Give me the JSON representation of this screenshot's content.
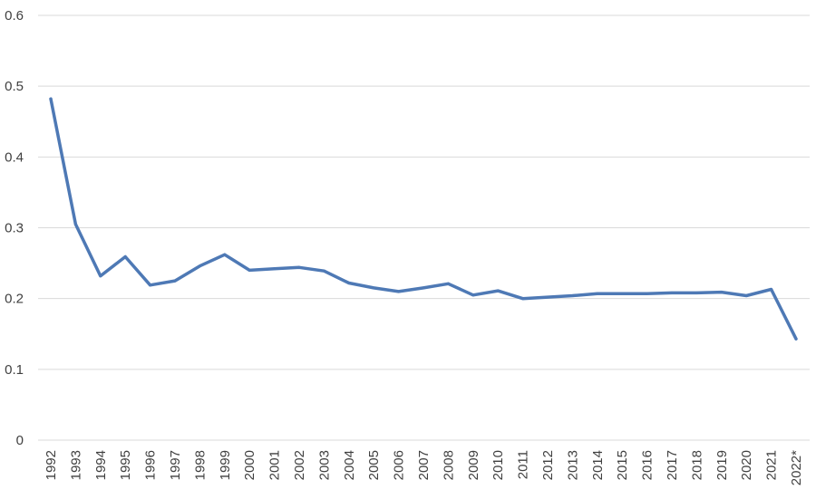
{
  "chart_data": {
    "type": "line",
    "categories": [
      "1992",
      "1993",
      "1994",
      "1995",
      "1996",
      "1997",
      "1998",
      "1999",
      "2000",
      "2001",
      "2002",
      "2003",
      "2004",
      "2005",
      "2006",
      "2007",
      "2008",
      "2009",
      "2010",
      "2011",
      "2012",
      "2013",
      "2014",
      "2015",
      "2016",
      "2017",
      "2018",
      "2019",
      "2020",
      "2021",
      "2022*"
    ],
    "series": [
      {
        "values": [
          0.482,
          0.305,
          0.232,
          0.259,
          0.219,
          0.225,
          0.246,
          0.262,
          0.24,
          0.242,
          0.244,
          0.239,
          0.222,
          0.215,
          0.21,
          0.215,
          0.221,
          0.205,
          0.211,
          0.2,
          0.202,
          0.204,
          0.207,
          0.207,
          0.207,
          0.208,
          0.208,
          0.209,
          0.204,
          0.213,
          0.143
        ],
        "color": "#4E79B5"
      }
    ],
    "yticks": [
      "0",
      "0.1",
      "0.2",
      "0.3",
      "0.4",
      "0.5",
      "0.6"
    ],
    "ylim": [
      0,
      0.6
    ],
    "grid": true,
    "legend": false
  }
}
